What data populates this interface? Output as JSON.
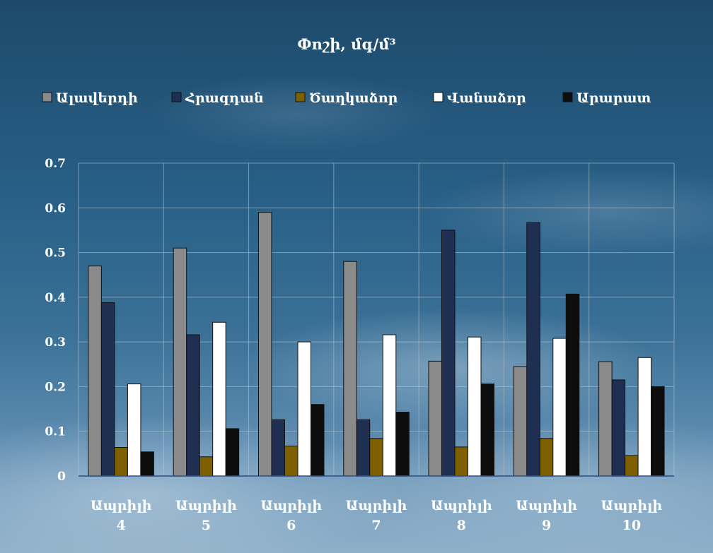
{
  "chart_data": {
    "type": "bar",
    "title": "Փոշի, մգ/մ³",
    "categories": [
      {
        "line1": "Ապրիլի",
        "line2": "4"
      },
      {
        "line1": "Ապրիլի",
        "line2": "5"
      },
      {
        "line1": "Ապրիլի",
        "line2": "6"
      },
      {
        "line1": "Ապրիլի",
        "line2": "7"
      },
      {
        "line1": "Ապրիլի",
        "line2": "8"
      },
      {
        "line1": "Ապրիլի",
        "line2": "9"
      },
      {
        "line1": "Ապրիլի",
        "line2": "10"
      }
    ],
    "series": [
      {
        "name": "Ալավերդի",
        "color": "#8a8a8a",
        "values": [
          0.47,
          0.51,
          0.59,
          0.48,
          0.257,
          0.245,
          0.256
        ]
      },
      {
        "name": "Հրազդան",
        "color": "#1e2f52",
        "values": [
          0.388,
          0.316,
          0.126,
          0.126,
          0.55,
          0.567,
          0.215
        ]
      },
      {
        "name": "Ծաղկաձոր",
        "color": "#7f6000",
        "values": [
          0.064,
          0.043,
          0.067,
          0.084,
          0.065,
          0.084,
          0.046
        ]
      },
      {
        "name": "Վանաձոր",
        "color": "#ffffff",
        "values": [
          0.206,
          0.344,
          0.3,
          0.316,
          0.311,
          0.308,
          0.265
        ]
      },
      {
        "name": "Արարատ",
        "color": "#0d0d0d",
        "values": [
          0.054,
          0.106,
          0.16,
          0.143,
          0.206,
          0.407,
          0.2
        ]
      }
    ],
    "ylim": [
      0,
      0.7
    ],
    "yticks": [
      "0",
      "0.1",
      "0.2",
      "0.3",
      "0.4",
      "0.5",
      "0.6",
      "0.7"
    ],
    "grid": true,
    "legend": "top"
  }
}
